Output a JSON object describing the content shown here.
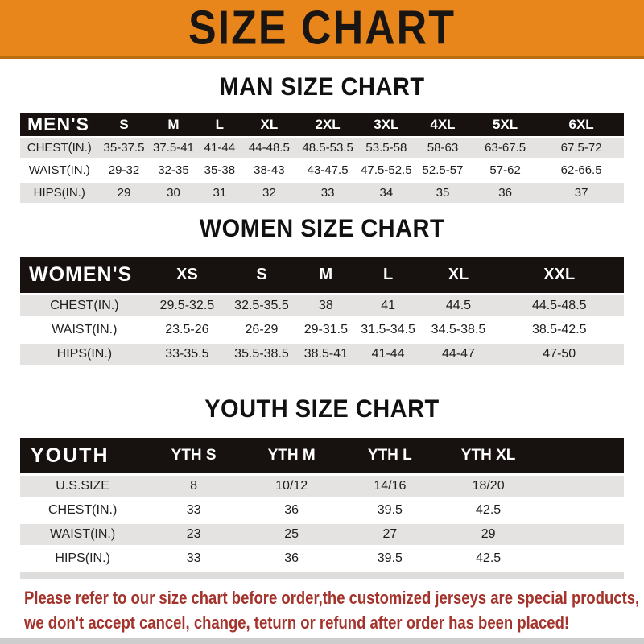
{
  "banner": {
    "title": "SIZE CHART"
  },
  "colors": {
    "banner_orange": "#E8861C",
    "banner_border": "#BA6E10",
    "header_bar_black": "#17120F",
    "row_stripe_gray": "#E4E3E1",
    "note_red": "#A4332C",
    "bottom_bar_gray": "#CDCDCD"
  },
  "sections": [
    {
      "id": "men",
      "title": "MAN SIZE CHART",
      "header_label": "MEN'S",
      "columns": [
        "S",
        "M",
        "L",
        "XL",
        "2XL",
        "3XL",
        "4XL",
        "5XL",
        "6XL"
      ],
      "rows": [
        {
          "label": "CHEST(IN.)",
          "values": [
            "35-37.5",
            "37.5-41",
            "41-44",
            "44-48.5",
            "48.5-53.5",
            "53.5-58",
            "58-63",
            "63-67.5",
            "67.5-72"
          ]
        },
        {
          "label": "WAIST(IN.)",
          "values": [
            "29-32",
            "32-35",
            "35-38",
            "38-43",
            "43-47.5",
            "47.5-52.5",
            "52.5-57",
            "57-62",
            "62-66.5"
          ]
        },
        {
          "label": "HIPS(IN.)",
          "values": [
            "29",
            "30",
            "31",
            "32",
            "33",
            "34",
            "35",
            "36",
            "37"
          ]
        }
      ]
    },
    {
      "id": "women",
      "title": "WOMEN SIZE CHART",
      "header_label": "WOMEN'S",
      "columns": [
        "XS",
        "S",
        "M",
        "L",
        "XL",
        "XXL"
      ],
      "rows": [
        {
          "label": "CHEST(IN.)",
          "values": [
            "29.5-32.5",
            "32.5-35.5",
            "38",
            "41",
            "44.5",
            "44.5-48.5"
          ]
        },
        {
          "label": "WAIST(IN.)",
          "values": [
            "23.5-26",
            "26-29",
            "29-31.5",
            "31.5-34.5",
            "34.5-38.5",
            "38.5-42.5"
          ]
        },
        {
          "label": "HIPS(IN.)",
          "values": [
            "33-35.5",
            "35.5-38.5",
            "38.5-41",
            "41-44",
            "44-47",
            "47-50"
          ]
        }
      ]
    },
    {
      "id": "youth",
      "title": "YOUTH SIZE CHART",
      "header_label": "YOUTH",
      "columns": [
        "YTH S",
        "YTH M",
        "YTH L",
        "YTH XL"
      ],
      "rows": [
        {
          "label": "U.S.SIZE",
          "values": [
            "8",
            "10/12",
            "14/16",
            "18/20"
          ]
        },
        {
          "label": "CHEST(IN.)",
          "values": [
            "33",
            "36",
            "39.5",
            "42.5"
          ]
        },
        {
          "label": "WAIST(IN.)",
          "values": [
            "23",
            "25",
            "27",
            "29"
          ]
        },
        {
          "label": "HIPS(IN.)",
          "values": [
            "33",
            "36",
            "39.5",
            "42.5"
          ]
        }
      ]
    }
  ],
  "footer": {
    "line1": "Please refer to our size chart before order,the customized jerseys are special products,",
    "line2": "we don't accept cancel, change, teturn or refund after order has been placed!"
  }
}
